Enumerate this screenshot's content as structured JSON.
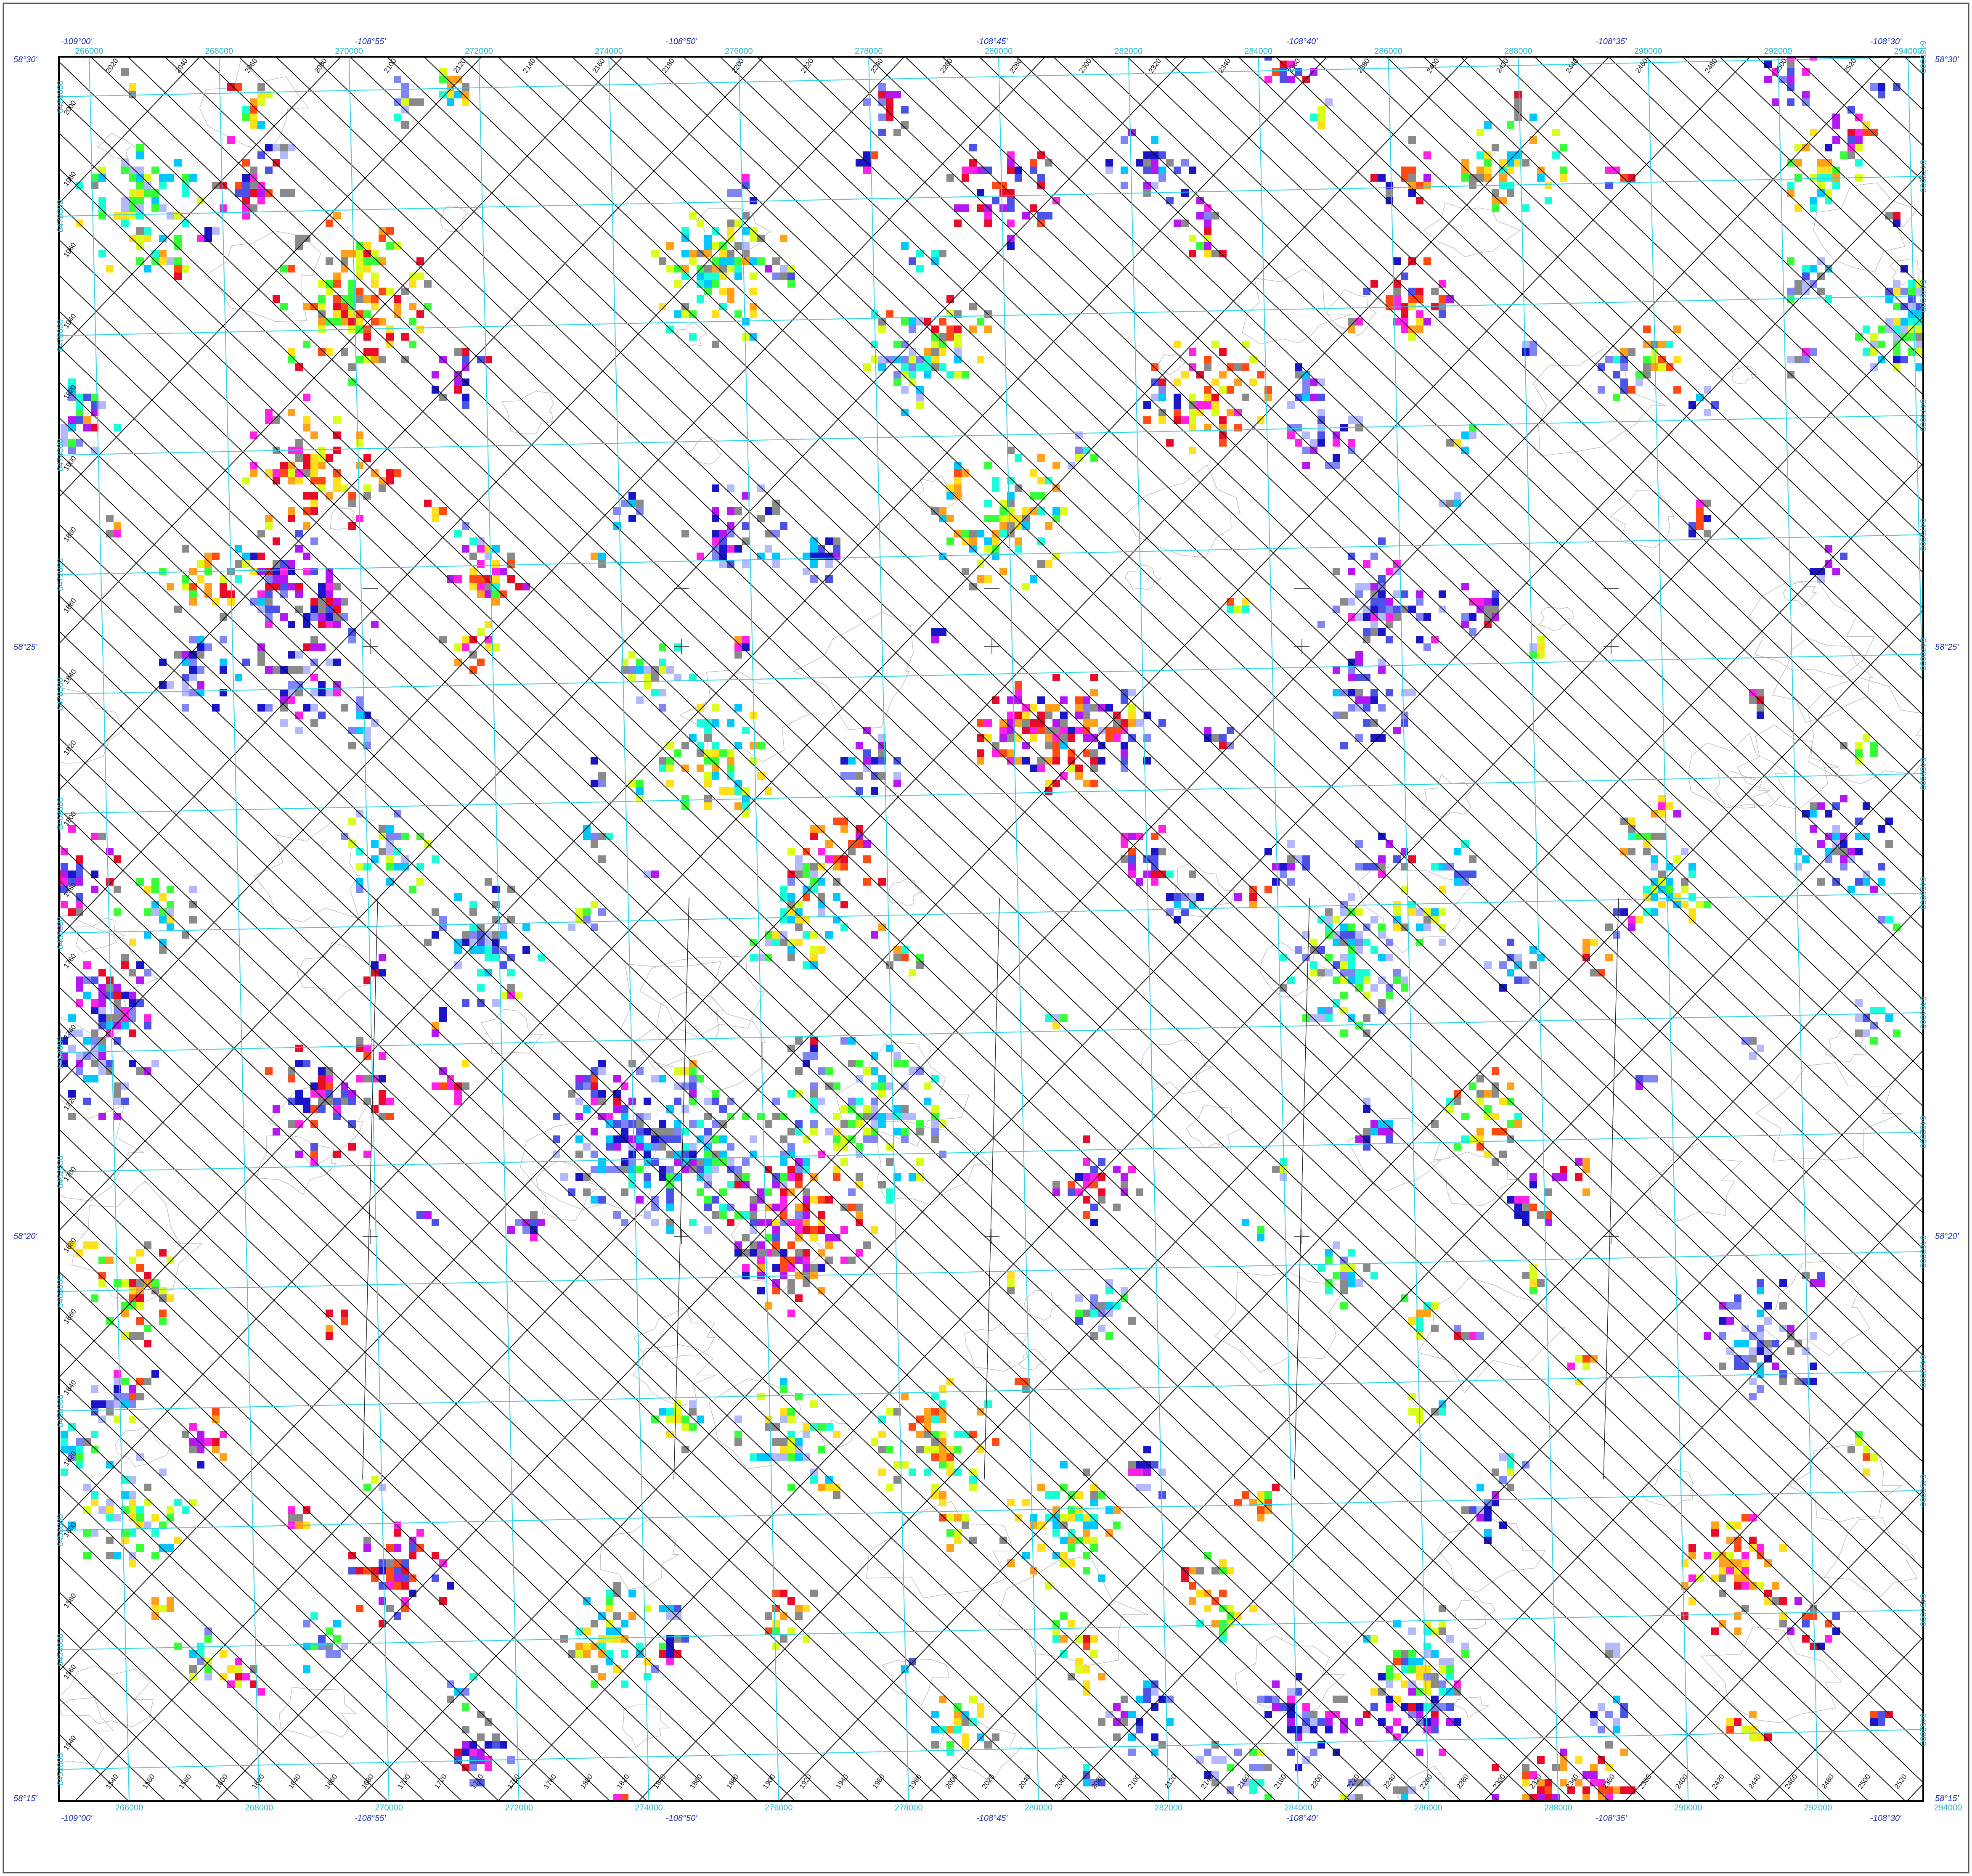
{
  "map": {
    "longitude_labels": [
      "-109°00'",
      "-108°55'",
      "-108°50'",
      "-108°45'",
      "-108°40'",
      "-108°35'",
      "-108°30'"
    ],
    "latitude_labels": [
      "58°30'",
      "58°25'",
      "58°20'",
      "58°15'"
    ],
    "easting_labels": [
      "266000",
      "268000",
      "270000",
      "272000",
      "274000",
      "276000",
      "278000",
      "280000",
      "282000",
      "284000",
      "286000",
      "288000",
      "290000",
      "292000",
      "294000"
    ],
    "northing_labels": [
      "6480000",
      "6478000",
      "6476000",
      "6474000",
      "6472000",
      "6470000",
      "6468000",
      "6466000",
      "6464000",
      "6462000",
      "6460000",
      "6458000",
      "6456000",
      "6454000",
      "6452000"
    ],
    "flight_line_labels": [
      "1540",
      "1560",
      "1580",
      "1600",
      "1620",
      "1640",
      "1660",
      "1680",
      "1700",
      "1720",
      "1740",
      "1760",
      "1780",
      "1800",
      "1820",
      "1840",
      "1860",
      "1880",
      "1900",
      "1920",
      "1940",
      "1960",
      "1980",
      "2000",
      "2020",
      "2040",
      "2060",
      "2080",
      "2100",
      "2120",
      "2140",
      "2160",
      "2180",
      "2200",
      "2220",
      "2240",
      "2260",
      "2280",
      "2300",
      "2320",
      "2340",
      "2360",
      "2380",
      "2400",
      "2420",
      "2440",
      "2460",
      "2480",
      "2500",
      "2520"
    ],
    "colors": {
      "frame": "#000000",
      "utm_grid": "#29d3e6",
      "flight_lines": "#000000",
      "contours": "#bdbdbd",
      "no_data_grey": "#8a8a8a",
      "latlon_text": "#1b2fb0",
      "palette": [
        "#1a16c8",
        "#4b53e6",
        "#7f86f3",
        "#b3b9fb",
        "#00c8ff",
        "#19ffd9",
        "#39ff39",
        "#d9ff1a",
        "#ffe01a",
        "#ffa11a",
        "#ff4a14",
        "#e80c2a",
        "#ff22e6",
        "#b417f2"
      ]
    },
    "layers": {
      "anomaly_grid": "colour-shaded anomaly patches",
      "grid_shown": true
    }
  }
}
